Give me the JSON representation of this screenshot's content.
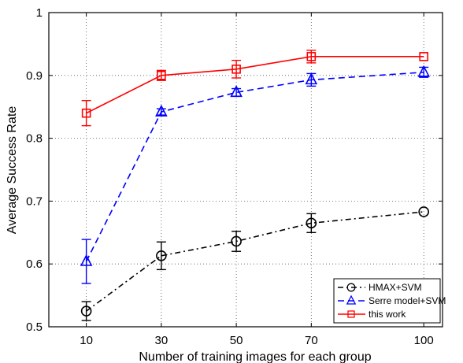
{
  "chart_data": {
    "type": "line",
    "xlabel": "Number of training images for each group",
    "ylabel": "Average Success Rate",
    "x": [
      10,
      30,
      50,
      70,
      100
    ],
    "xticks": [
      10,
      30,
      50,
      70,
      100
    ],
    "yticks": [
      0.5,
      0.6,
      0.7,
      0.8,
      0.9,
      1.0
    ],
    "ytick_labels": [
      "0.5",
      "0.6",
      "0.7",
      "0.8",
      "0.9",
      "1"
    ],
    "xlim": [
      0,
      105
    ],
    "ylim": [
      0.5,
      1.0
    ],
    "grid": true,
    "legend_position": "bottom-right",
    "series": [
      {
        "name": "HMAX+SVM",
        "color": "#000000",
        "linestyle": "dash-dot",
        "marker": "circle",
        "values": [
          0.525,
          0.613,
          0.636,
          0.665,
          0.683
        ],
        "errors": [
          0.015,
          0.022,
          0.016,
          0.015,
          0.0
        ]
      },
      {
        "name": "Serre model+SVM",
        "color": "#0000ff",
        "linestyle": "dashed",
        "marker": "triangle",
        "values": [
          0.604,
          0.842,
          0.873,
          0.893,
          0.905
        ],
        "errors": [
          0.035,
          0.005,
          0.006,
          0.01,
          0.008
        ]
      },
      {
        "name": "this work",
        "color": "#ff0000",
        "linestyle": "solid",
        "marker": "square",
        "values": [
          0.84,
          0.9,
          0.91,
          0.93,
          0.93
        ],
        "errors": [
          0.02,
          0.008,
          0.014,
          0.01,
          0.0
        ]
      }
    ]
  }
}
